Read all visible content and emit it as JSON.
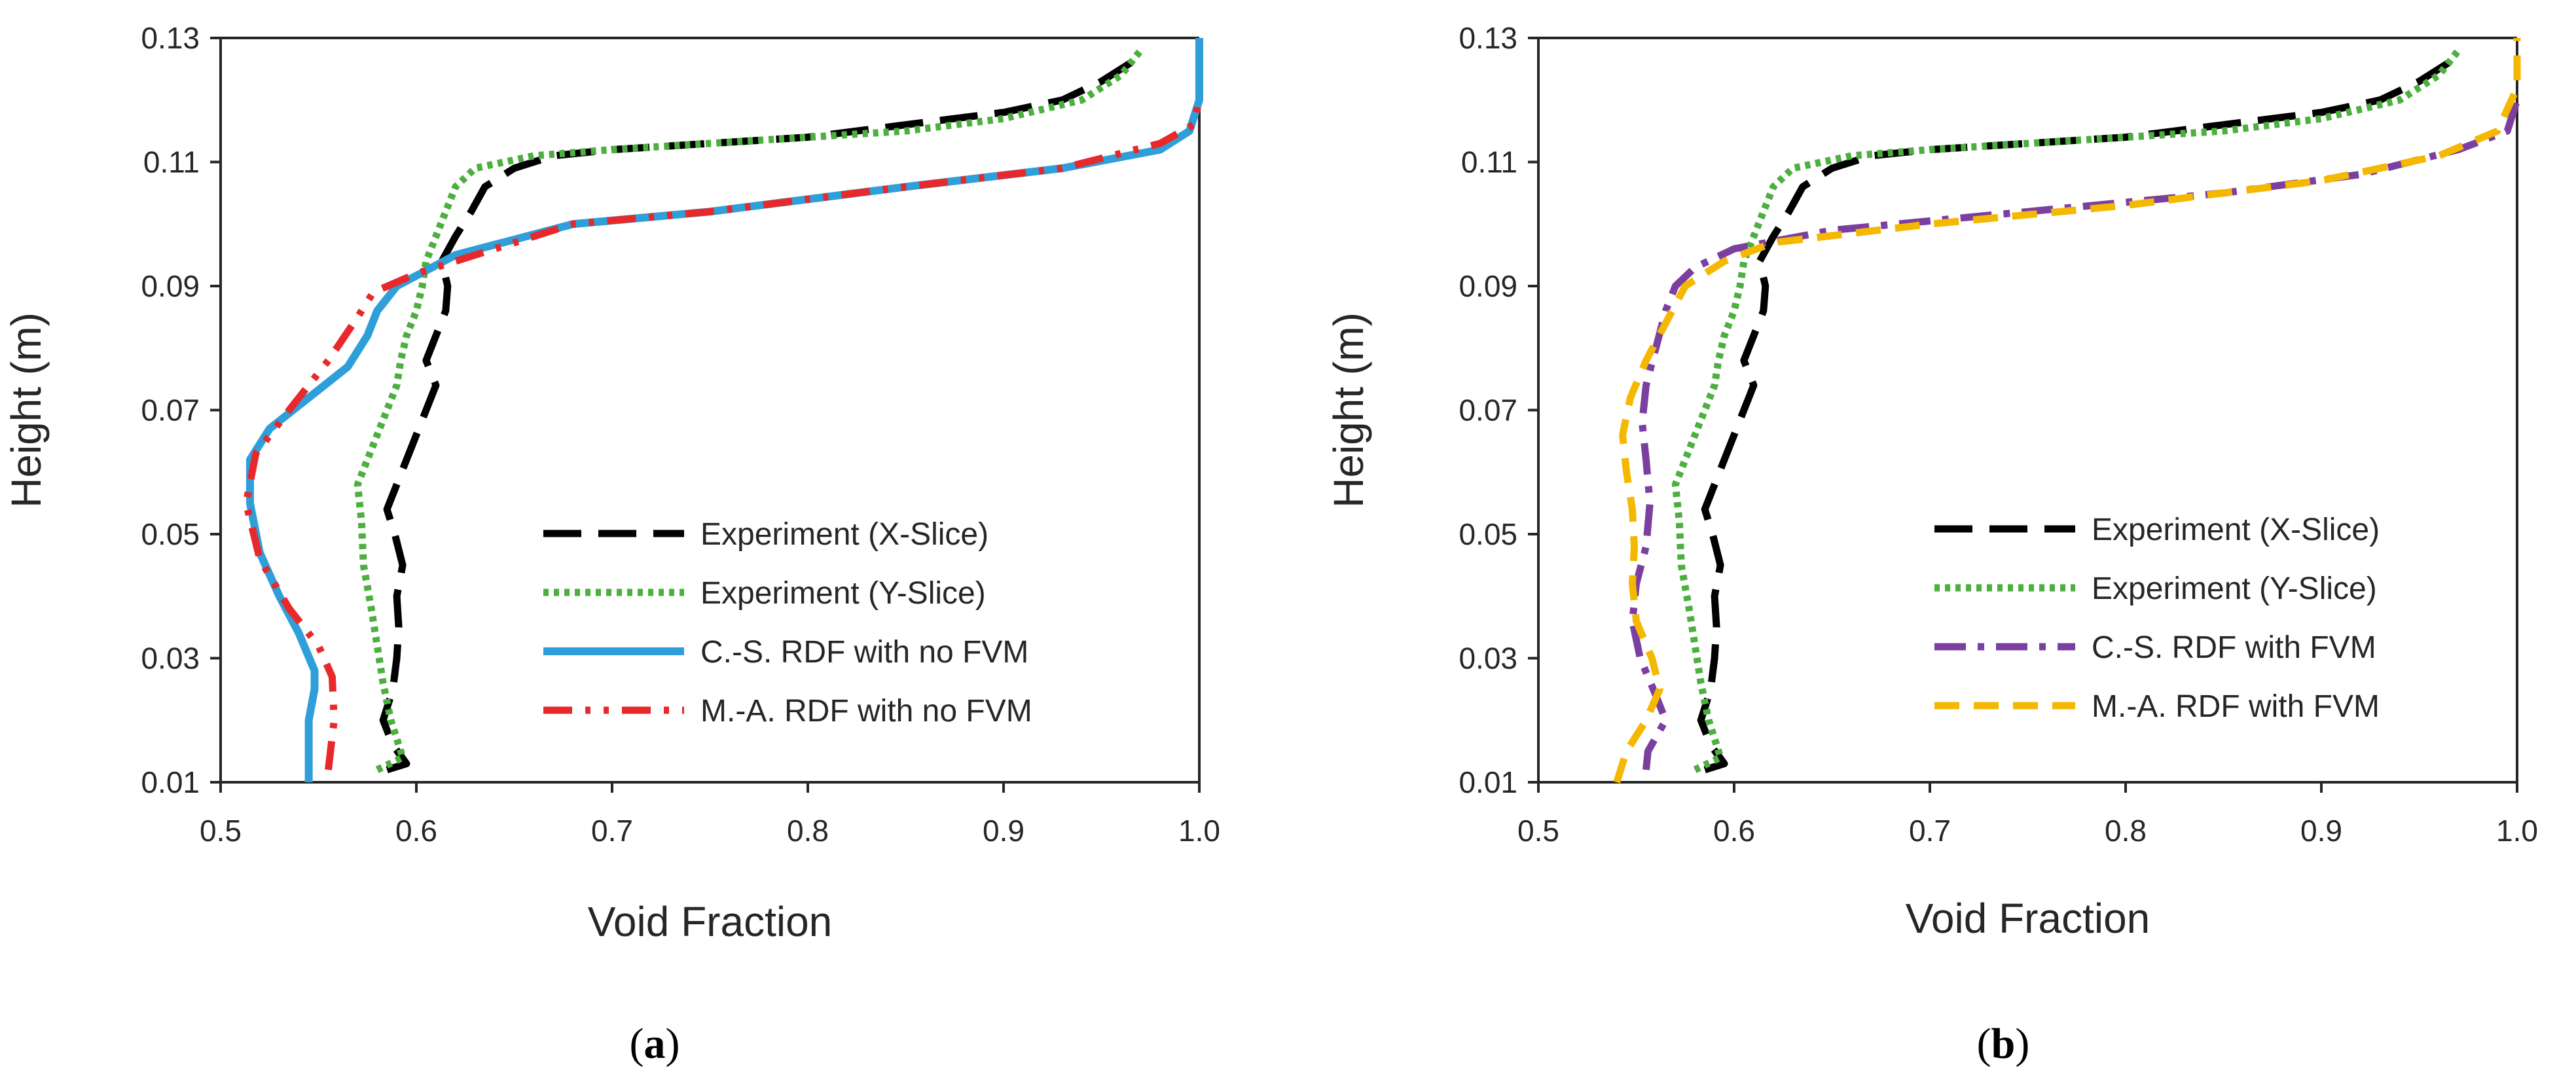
{
  "chart_data": [
    {
      "panel_label": "a",
      "type": "line",
      "xlabel": "Void Fraction",
      "ylabel": "Height (m)",
      "xlim": [
        0.5,
        1.0
      ],
      "ylim": [
        0.01,
        0.13
      ],
      "xticks": [
        "0.5",
        "0.6",
        "0.7",
        "0.8",
        "0.9",
        "1.0"
      ],
      "yticks": [
        "0.01",
        "0.03",
        "0.05",
        "0.07",
        "0.09",
        "0.11",
        "0.13"
      ],
      "legend_position": "bottom-right",
      "series": [
        {
          "name": "Experiment (X-Slice)",
          "color": "#000000",
          "style": "longdash",
          "points": [
            [
              0.585,
              0.012
            ],
            [
              0.595,
              0.013
            ],
            [
              0.588,
              0.016
            ],
            [
              0.583,
              0.02
            ],
            [
              0.588,
              0.025
            ],
            [
              0.59,
              0.03
            ],
            [
              0.591,
              0.035
            ],
            [
              0.59,
              0.04
            ],
            [
              0.593,
              0.045
            ],
            [
              0.589,
              0.05
            ],
            [
              0.585,
              0.054
            ],
            [
              0.59,
              0.058
            ],
            [
              0.595,
              0.062
            ],
            [
              0.6,
              0.066
            ],
            [
              0.605,
              0.07
            ],
            [
              0.61,
              0.074
            ],
            [
              0.605,
              0.078
            ],
            [
              0.61,
              0.082
            ],
            [
              0.615,
              0.086
            ],
            [
              0.616,
              0.09
            ],
            [
              0.613,
              0.094
            ],
            [
              0.62,
              0.098
            ],
            [
              0.628,
              0.102
            ],
            [
              0.635,
              0.106
            ],
            [
              0.65,
              0.109
            ],
            [
              0.67,
              0.111
            ],
            [
              0.7,
              0.112
            ],
            [
              0.75,
              0.113
            ],
            [
              0.8,
              0.114
            ],
            [
              0.85,
              0.116
            ],
            [
              0.9,
              0.118
            ],
            [
              0.93,
              0.12
            ],
            [
              0.95,
              0.123
            ],
            [
              0.965,
              0.126
            ],
            [
              0.97,
              0.128
            ]
          ]
        },
        {
          "name": "Experiment (Y-Slice)",
          "color": "#4CAF3F",
          "style": "dot",
          "points": [
            [
              0.58,
              0.012
            ],
            [
              0.593,
              0.014
            ],
            [
              0.587,
              0.02
            ],
            [
              0.583,
              0.026
            ],
            [
              0.58,
              0.032
            ],
            [
              0.577,
              0.038
            ],
            [
              0.573,
              0.045
            ],
            [
              0.572,
              0.052
            ],
            [
              0.57,
              0.058
            ],
            [
              0.575,
              0.062
            ],
            [
              0.58,
              0.066
            ],
            [
              0.585,
              0.07
            ],
            [
              0.59,
              0.074
            ],
            [
              0.592,
              0.078
            ],
            [
              0.595,
              0.082
            ],
            [
              0.6,
              0.086
            ],
            [
              0.603,
              0.09
            ],
            [
              0.605,
              0.094
            ],
            [
              0.61,
              0.098
            ],
            [
              0.615,
              0.102
            ],
            [
              0.62,
              0.106
            ],
            [
              0.63,
              0.109
            ],
            [
              0.66,
              0.111
            ],
            [
              0.7,
              0.112
            ],
            [
              0.75,
              0.113
            ],
            [
              0.8,
              0.114
            ],
            [
              0.85,
              0.115
            ],
            [
              0.9,
              0.117
            ],
            [
              0.94,
              0.12
            ],
            [
              0.96,
              0.124
            ],
            [
              0.97,
              0.128
            ]
          ]
        },
        {
          "name": "C.-S. RDF with no FVM",
          "color": "#2E9FD9",
          "style": "solid",
          "points": [
            [
              0.545,
              0.01
            ],
            [
              0.545,
              0.02
            ],
            [
              0.548,
              0.025
            ],
            [
              0.548,
              0.028
            ],
            [
              0.54,
              0.034
            ],
            [
              0.53,
              0.04
            ],
            [
              0.52,
              0.047
            ],
            [
              0.515,
              0.055
            ],
            [
              0.515,
              0.062
            ],
            [
              0.525,
              0.067
            ],
            [
              0.545,
              0.072
            ],
            [
              0.565,
              0.077
            ],
            [
              0.575,
              0.082
            ],
            [
              0.58,
              0.086
            ],
            [
              0.59,
              0.09
            ],
            [
              0.62,
              0.095
            ],
            [
              0.68,
              0.1
            ],
            [
              0.75,
              0.102
            ],
            [
              0.85,
              0.106
            ],
            [
              0.93,
              0.109
            ],
            [
              0.98,
              0.112
            ],
            [
              0.995,
              0.115
            ],
            [
              1.0,
              0.12
            ],
            [
              1.0,
              0.13
            ]
          ]
        },
        {
          "name": "M.-A. RDF with no FVM",
          "color": "#E8282B",
          "style": "dashdotdot",
          "points": [
            [
              0.555,
              0.012
            ],
            [
              0.558,
              0.02
            ],
            [
              0.557,
              0.027
            ],
            [
              0.55,
              0.032
            ],
            [
              0.535,
              0.038
            ],
            [
              0.52,
              0.046
            ],
            [
              0.513,
              0.055
            ],
            [
              0.518,
              0.063
            ],
            [
              0.535,
              0.07
            ],
            [
              0.555,
              0.078
            ],
            [
              0.57,
              0.085
            ],
            [
              0.578,
              0.089
            ],
            [
              0.6,
              0.092
            ],
            [
              0.63,
              0.095
            ],
            [
              0.68,
              0.1
            ],
            [
              0.75,
              0.102
            ],
            [
              0.85,
              0.106
            ],
            [
              0.93,
              0.109
            ],
            [
              0.98,
              0.113
            ],
            [
              0.997,
              0.116
            ],
            [
              1.0,
              0.12
            ]
          ]
        }
      ]
    },
    {
      "panel_label": "b",
      "type": "line",
      "xlabel": "Void Fraction",
      "ylabel": "Height (m)",
      "xlim": [
        0.5,
        1.0
      ],
      "ylim": [
        0.01,
        0.13
      ],
      "xticks": [
        "0.5",
        "0.6",
        "0.7",
        "0.8",
        "0.9",
        "1.0"
      ],
      "yticks": [
        "0.01",
        "0.03",
        "0.05",
        "0.07",
        "0.09",
        "0.11",
        "0.13"
      ],
      "legend_position": "bottom-right",
      "series": [
        {
          "name": "Experiment (X-Slice)",
          "color": "#000000",
          "style": "longdash",
          "points": [
            [
              0.585,
              0.012
            ],
            [
              0.595,
              0.013
            ],
            [
              0.588,
              0.016
            ],
            [
              0.583,
              0.02
            ],
            [
              0.588,
              0.025
            ],
            [
              0.59,
              0.03
            ],
            [
              0.591,
              0.035
            ],
            [
              0.59,
              0.04
            ],
            [
              0.593,
              0.045
            ],
            [
              0.589,
              0.05
            ],
            [
              0.585,
              0.054
            ],
            [
              0.59,
              0.058
            ],
            [
              0.595,
              0.062
            ],
            [
              0.6,
              0.066
            ],
            [
              0.605,
              0.07
            ],
            [
              0.61,
              0.074
            ],
            [
              0.605,
              0.078
            ],
            [
              0.61,
              0.082
            ],
            [
              0.615,
              0.086
            ],
            [
              0.616,
              0.09
            ],
            [
              0.613,
              0.094
            ],
            [
              0.62,
              0.098
            ],
            [
              0.628,
              0.102
            ],
            [
              0.635,
              0.106
            ],
            [
              0.65,
              0.109
            ],
            [
              0.67,
              0.111
            ],
            [
              0.7,
              0.112
            ],
            [
              0.75,
              0.113
            ],
            [
              0.8,
              0.114
            ],
            [
              0.85,
              0.116
            ],
            [
              0.9,
              0.118
            ],
            [
              0.93,
              0.12
            ],
            [
              0.95,
              0.123
            ],
            [
              0.965,
              0.126
            ],
            [
              0.97,
              0.128
            ]
          ]
        },
        {
          "name": "Experiment (Y-Slice)",
          "color": "#4CAF3F",
          "style": "dot",
          "points": [
            [
              0.58,
              0.012
            ],
            [
              0.593,
              0.014
            ],
            [
              0.587,
              0.02
            ],
            [
              0.583,
              0.026
            ],
            [
              0.58,
              0.032
            ],
            [
              0.577,
              0.038
            ],
            [
              0.573,
              0.045
            ],
            [
              0.572,
              0.052
            ],
            [
              0.57,
              0.058
            ],
            [
              0.575,
              0.062
            ],
            [
              0.58,
              0.066
            ],
            [
              0.585,
              0.07
            ],
            [
              0.59,
              0.074
            ],
            [
              0.592,
              0.078
            ],
            [
              0.595,
              0.082
            ],
            [
              0.6,
              0.086
            ],
            [
              0.603,
              0.09
            ],
            [
              0.605,
              0.094
            ],
            [
              0.61,
              0.098
            ],
            [
              0.615,
              0.102
            ],
            [
              0.62,
              0.106
            ],
            [
              0.63,
              0.109
            ],
            [
              0.66,
              0.111
            ],
            [
              0.7,
              0.112
            ],
            [
              0.75,
              0.113
            ],
            [
              0.8,
              0.114
            ],
            [
              0.85,
              0.115
            ],
            [
              0.9,
              0.117
            ],
            [
              0.94,
              0.12
            ],
            [
              0.96,
              0.124
            ],
            [
              0.97,
              0.128
            ]
          ]
        },
        {
          "name": "C.-S. RDF with FVM",
          "color": "#7B3FA0",
          "style": "dashdot",
          "points": [
            [
              0.555,
              0.012
            ],
            [
              0.556,
              0.015
            ],
            [
              0.565,
              0.02
            ],
            [
              0.56,
              0.024
            ],
            [
              0.552,
              0.03
            ],
            [
              0.548,
              0.036
            ],
            [
              0.55,
              0.042
            ],
            [
              0.555,
              0.048
            ],
            [
              0.557,
              0.055
            ],
            [
              0.555,
              0.062
            ],
            [
              0.553,
              0.068
            ],
            [
              0.555,
              0.074
            ],
            [
              0.56,
              0.08
            ],
            [
              0.565,
              0.086
            ],
            [
              0.57,
              0.09
            ],
            [
              0.58,
              0.093
            ],
            [
              0.6,
              0.096
            ],
            [
              0.65,
              0.099
            ],
            [
              0.75,
              0.102
            ],
            [
              0.85,
              0.105
            ],
            [
              0.92,
              0.108
            ],
            [
              0.97,
              0.112
            ],
            [
              0.995,
              0.115
            ],
            [
              1.0,
              0.12
            ]
          ]
        },
        {
          "name": "M.-A. RDF with FVM",
          "color": "#F5B800",
          "style": "dash",
          "points": [
            [
              0.54,
              0.01
            ],
            [
              0.545,
              0.015
            ],
            [
              0.555,
              0.02
            ],
            [
              0.562,
              0.025
            ],
            [
              0.558,
              0.03
            ],
            [
              0.55,
              0.036
            ],
            [
              0.548,
              0.042
            ],
            [
              0.549,
              0.048
            ],
            [
              0.548,
              0.054
            ],
            [
              0.545,
              0.06
            ],
            [
              0.543,
              0.066
            ],
            [
              0.547,
              0.072
            ],
            [
              0.555,
              0.078
            ],
            [
              0.565,
              0.084
            ],
            [
              0.575,
              0.09
            ],
            [
              0.595,
              0.094
            ],
            [
              0.62,
              0.097
            ],
            [
              0.7,
              0.1
            ],
            [
              0.8,
              0.103
            ],
            [
              0.9,
              0.107
            ],
            [
              0.96,
              0.111
            ],
            [
              0.99,
              0.115
            ],
            [
              1.0,
              0.122
            ],
            [
              1.0,
              0.13
            ]
          ]
        }
      ]
    }
  ]
}
